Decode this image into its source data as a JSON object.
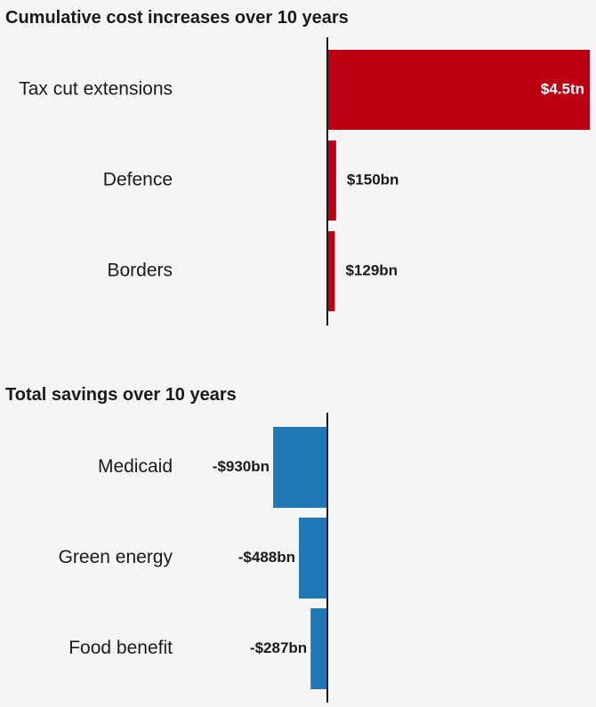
{
  "chart_data": [
    {
      "type": "bar",
      "orientation": "horizontal",
      "title": "Cumulative cost increases over 10 years",
      "unit": "$bn",
      "categories": [
        "Tax cut extensions",
        "Defence",
        "Borders"
      ],
      "values": [
        4500,
        150,
        129
      ],
      "labels": [
        "$4.5tn",
        "$150bn",
        "$129bn"
      ],
      "color": "#bb0014",
      "xlim": [
        -930,
        4500
      ]
    },
    {
      "type": "bar",
      "orientation": "horizontal",
      "title": "Total savings over 10 years",
      "unit": "$bn",
      "categories": [
        "Medicaid",
        "Green energy",
        "Food benefit"
      ],
      "values": [
        -930,
        -488,
        -287
      ],
      "labels": [
        "-$930bn",
        "-$488bn",
        "-$287bn"
      ],
      "color": "#1f77b4",
      "xlim": [
        -930,
        4500
      ]
    }
  ]
}
